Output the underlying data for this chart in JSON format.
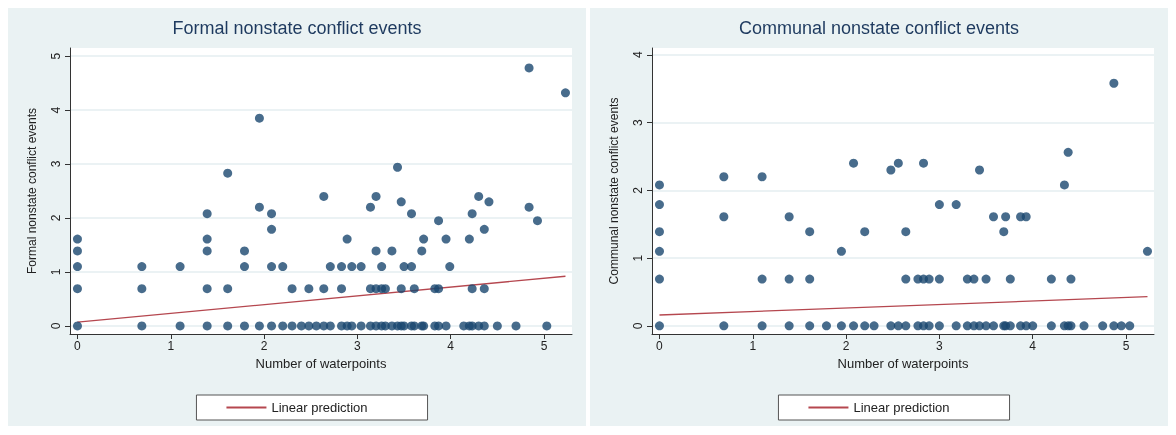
{
  "chart_data": [
    {
      "type": "scatter",
      "title": "Formal nonstate conflict events",
      "xlabel": "Number of waterpoints",
      "ylabel": "Formal nonstate conflict events",
      "xlim": [
        -0.08,
        5.3
      ],
      "xticks": [
        0,
        1,
        2,
        3,
        4,
        5
      ],
      "ylim": [
        -0.15,
        5.15
      ],
      "yticks": [
        0,
        1,
        2,
        3,
        4,
        5
      ],
      "grid": "y",
      "legend": "bottom",
      "series": [
        {
          "marker": "circle",
          "color": "#1a476f",
          "x": [
            0,
            0,
            0,
            0,
            0,
            0.69,
            0.69,
            0.69,
            1.1,
            1.1,
            1.39,
            1.39,
            1.39,
            1.39,
            1.39,
            1.61,
            1.61,
            1.61,
            1.79,
            1.79,
            1.79,
            1.95,
            1.95,
            1.95,
            2.08,
            2.08,
            2.08,
            2.08,
            2.2,
            2.2,
            2.3,
            2.3,
            2.4,
            2.48,
            2.48,
            2.56,
            2.64,
            2.64,
            2.64,
            2.71,
            2.71,
            2.83,
            2.83,
            2.83,
            2.89,
            2.89,
            2.94,
            2.94,
            3.04,
            3.04,
            3.14,
            3.14,
            3.14,
            3.2,
            3.2,
            3.2,
            3.2,
            3.26,
            3.26,
            3.26,
            3.3,
            3.3,
            3.37,
            3.37,
            3.43,
            3.43,
            3.47,
            3.47,
            3.47,
            3.5,
            3.5,
            3.58,
            3.58,
            3.58,
            3.61,
            3.61,
            3.69,
            3.69,
            3.71,
            3.71,
            3.83,
            3.83,
            3.87,
            3.87,
            3.87,
            3.95,
            3.95,
            3.99,
            4.14,
            4.2,
            4.2,
            4.23,
            4.23,
            4.23,
            4.3,
            4.3,
            4.36,
            4.36,
            4.36,
            4.41,
            4.5,
            4.7,
            4.84,
            4.84,
            4.93,
            5.03,
            5.23
          ],
          "values": [
            0,
            0.69,
            1.1,
            1.39,
            1.61,
            0,
            0.69,
            1.1,
            0,
            1.1,
            0,
            0.69,
            1.39,
            1.61,
            2.08,
            0,
            0.69,
            2.83,
            0,
            1.1,
            1.39,
            0,
            2.2,
            3.85,
            0,
            1.1,
            1.79,
            2.08,
            0,
            1.1,
            0,
            0.69,
            0,
            0,
            0.69,
            0,
            0,
            0.69,
            2.4,
            0,
            1.1,
            0,
            0.69,
            1.1,
            0,
            1.61,
            0,
            1.1,
            0,
            1.1,
            0,
            0.69,
            2.2,
            0,
            0.69,
            1.39,
            2.4,
            0,
            0.69,
            1.1,
            0,
            0.69,
            0,
            1.39,
            0,
            2.94,
            0,
            0.69,
            2.3,
            0,
            1.1,
            0,
            1.1,
            2.08,
            0,
            0.69,
            0,
            1.39,
            0,
            1.61,
            0,
            0.69,
            0,
            0.69,
            1.95,
            0,
            1.61,
            1.1,
            0,
            0,
            1.61,
            0,
            0.69,
            2.08,
            0,
            2.4,
            0,
            0.69,
            1.79,
            2.3,
            0,
            0,
            2.2,
            4.78,
            1.95,
            0,
            4.32
          ]
        },
        {
          "type": "line",
          "name": "Linear prediction",
          "color": "#b5474f",
          "x": [
            0,
            5.23
          ],
          "values": [
            0.07,
            0.92
          ]
        }
      ]
    },
    {
      "type": "scatter",
      "title": "Communal nonstate conflict events",
      "xlabel": "Number of waterpoints",
      "ylabel": "Communal nonstate conflict events",
      "xlim": [
        -0.08,
        5.3
      ],
      "xticks": [
        0,
        1,
        2,
        3,
        4,
        5
      ],
      "ylim": [
        -0.12,
        4.1
      ],
      "yticks": [
        0,
        1,
        2,
        3,
        4
      ],
      "grid": "y",
      "legend": "bottom",
      "series": [
        {
          "marker": "circle",
          "color": "#1a476f",
          "x": [
            0,
            0,
            0,
            0,
            0,
            0,
            0.69,
            0.69,
            0.69,
            1.1,
            1.1,
            1.1,
            1.39,
            1.39,
            1.39,
            1.61,
            1.61,
            1.61,
            1.79,
            1.95,
            1.95,
            2.08,
            2.08,
            2.2,
            2.2,
            2.3,
            2.48,
            2.48,
            2.56,
            2.56,
            2.64,
            2.64,
            2.64,
            2.77,
            2.77,
            2.83,
            2.83,
            2.83,
            2.89,
            2.89,
            3.0,
            3.0,
            3.0,
            3.18,
            3.18,
            3.3,
            3.3,
            3.37,
            3.37,
            3.43,
            3.43,
            3.5,
            3.5,
            3.58,
            3.58,
            3.69,
            3.69,
            3.71,
            3.71,
            3.76,
            3.76,
            3.87,
            3.87,
            3.93,
            3.93,
            4.0,
            4.2,
            4.2,
            4.34,
            4.34,
            4.38,
            4.38,
            4.41,
            4.41,
            4.55,
            4.75,
            4.87,
            4.87,
            4.95,
            5.04,
            5.23
          ],
          "values": [
            0,
            0.69,
            1.1,
            1.39,
            1.79,
            2.08,
            0,
            1.61,
            2.2,
            0,
            0.69,
            2.2,
            0,
            0.69,
            1.61,
            0,
            0.69,
            1.39,
            0,
            0,
            1.1,
            0,
            2.4,
            0,
            1.39,
            0,
            0,
            2.3,
            0,
            2.4,
            0,
            0.69,
            1.39,
            0,
            0.69,
            0,
            0.69,
            2.4,
            0,
            0.69,
            0,
            0.69,
            1.79,
            0,
            1.79,
            0,
            0.69,
            0,
            0.69,
            0,
            2.3,
            0,
            0.69,
            0,
            1.61,
            0,
            1.39,
            0,
            1.61,
            0,
            0.69,
            0,
            1.61,
            0,
            1.61,
            0,
            0,
            0.69,
            0,
            2.08,
            0,
            2.56,
            0,
            0.69,
            0,
            0,
            0,
            3.58,
            0,
            0,
            1.1
          ]
        },
        {
          "type": "line",
          "name": "Linear prediction",
          "color": "#b5474f",
          "x": [
            0,
            5.23
          ],
          "values": [
            0.16,
            0.43
          ]
        }
      ]
    }
  ]
}
